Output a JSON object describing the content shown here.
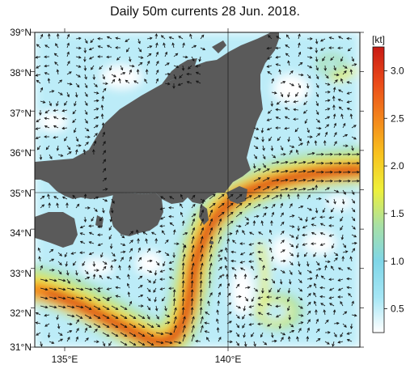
{
  "title": "Daily 50m currents 28 Jun. 2018.",
  "map": {
    "lat_labels": [
      "39°N",
      "38°N",
      "37°N",
      "36°N",
      "35°N",
      "34°N",
      "33°N",
      "32°N",
      "31°N"
    ],
    "lon_labels": [
      "135°E",
      "140°E"
    ],
    "lat_range": [
      31,
      39
    ],
    "lon_range": [
      134,
      144
    ],
    "land_color": "#5a5a5a",
    "sea_color": "#ffffff"
  },
  "colorbar": {
    "unit": "[kt]",
    "ticks": [
      "0.5",
      "1.0",
      "1.5",
      "2.0",
      "2.5",
      "3.0"
    ],
    "tick_values": [
      0.5,
      1.0,
      1.5,
      2.0,
      2.5,
      3.0
    ],
    "range": [
      0.25,
      3.25
    ],
    "colors": [
      "#ffffff",
      "#a5e6f5",
      "#7fd6e8",
      "#a8e0a5",
      "#eef03a",
      "#f8c21e",
      "#f3851c",
      "#ea4a19",
      "#c81a14"
    ]
  }
}
